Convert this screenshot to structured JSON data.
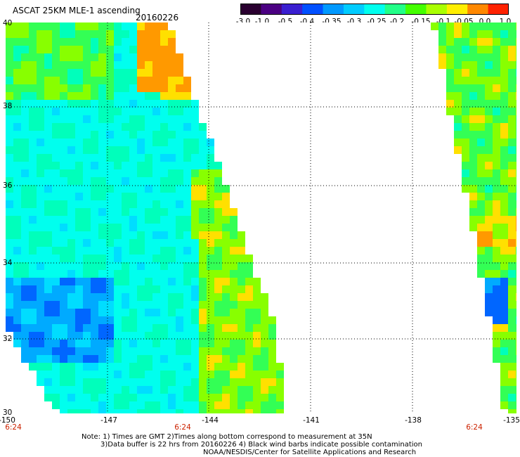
{
  "title": "ASCAT 25KM MLE-1 ascending",
  "date": "20160226",
  "colorbar": {
    "ticks": [
      "-3.0",
      "-1.0",
      "-0.5",
      "-0.4",
      "-0.35",
      "-0.3",
      "-0.25",
      "-0.2",
      "-0.15",
      "-0.1",
      "-0.05",
      "0.0",
      "1.0"
    ],
    "colors": [
      "#2a0030",
      "#4b0082",
      "#3a1fd0",
      "#0050ff",
      "#0099ff",
      "#00ccff",
      "#00ffee",
      "#22ff88",
      "#44ff00",
      "#aaff00",
      "#ffee00",
      "#ff8800",
      "#ff2200"
    ]
  },
  "map": {
    "lon_range": [
      -150,
      -135
    ],
    "lat_range": [
      30,
      40
    ],
    "x_ticks": [
      "-150",
      "-147",
      "-144",
      "-141",
      "-138",
      "-135"
    ],
    "y_ticks": [
      "40",
      "38",
      "36",
      "34",
      "32",
      "30"
    ],
    "time_labels": [
      "6:24",
      "6:24",
      "6:24"
    ],
    "land_color": "#ffffff"
  },
  "notes": {
    "line1": "Note: 1) Times are GMT 2)Times along bottom correspond to measurement at 35N",
    "line2": "3)Data buffer is 22 hrs from 20160226 4) Black wind barbs indicate possible contamination",
    "line3": "NOAA/NESDIS/Center for Satellite Applications and Research"
  }
}
